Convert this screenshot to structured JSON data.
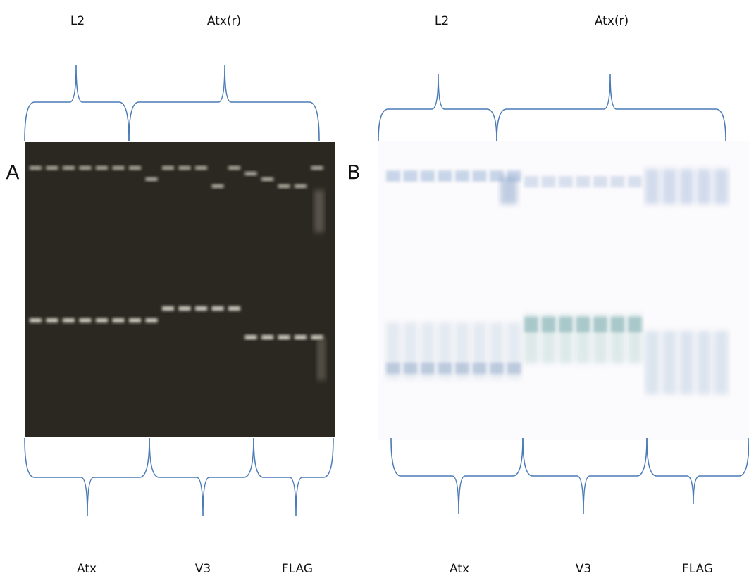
{
  "panels": [
    {
      "label": "A",
      "top": [
        "L2",
        "Atx(r)"
      ],
      "bottom": [
        "Atx",
        "V3",
        "FLAG"
      ]
    },
    {
      "label": "B",
      "top": [
        "L2",
        "Atx(r)"
      ],
      "bottom": [
        "Atx",
        "V3",
        "FLAG"
      ]
    }
  ]
}
